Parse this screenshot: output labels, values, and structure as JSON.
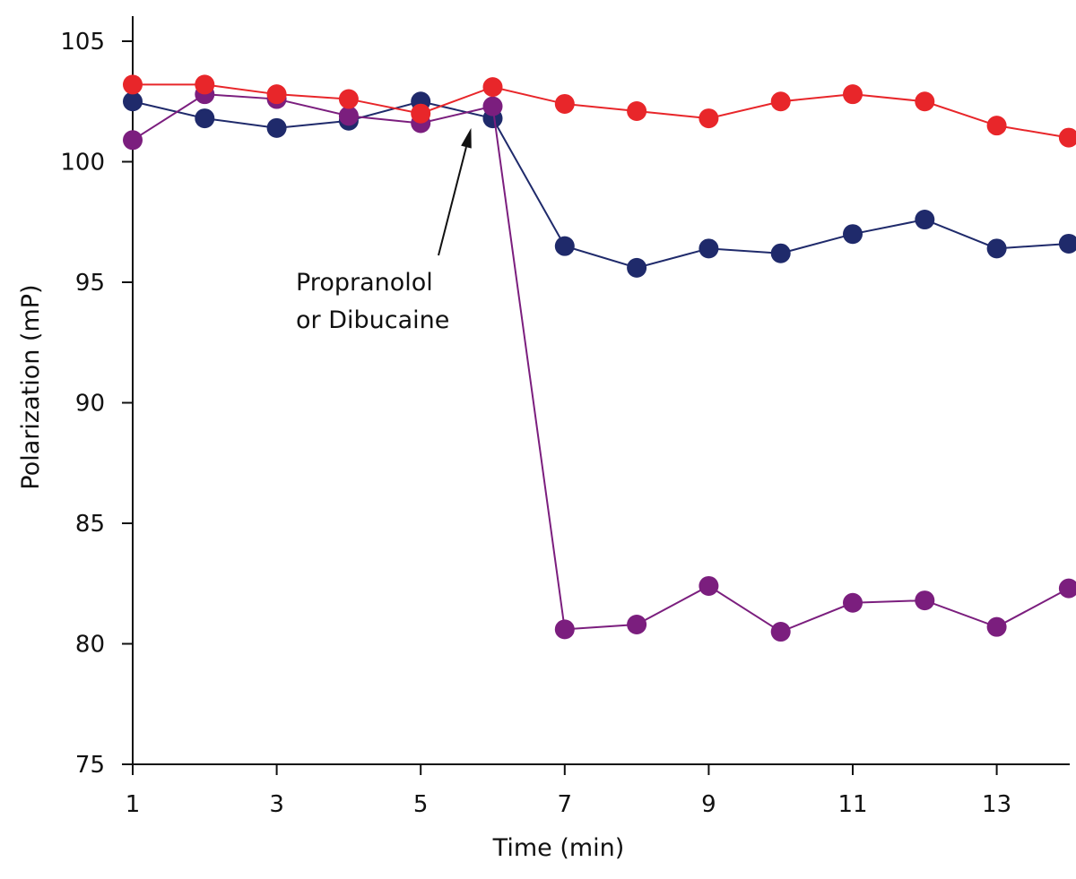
{
  "chart_data": {
    "type": "line",
    "title": "",
    "xlabel": "Time (min)",
    "ylabel": "Polarization (mP)",
    "xlim": [
      1,
      14
    ],
    "ylim": [
      75,
      105
    ],
    "x_ticks": [
      "1",
      "3",
      "5",
      "7",
      "9",
      "11",
      "13"
    ],
    "y_ticks": [
      "75",
      "80",
      "85",
      "90",
      "95",
      "100",
      "105"
    ],
    "grid": false,
    "legend": "none",
    "annotation": {
      "lines": [
        "Propranolol",
        "or Dibucaine"
      ],
      "points_to_x": 5.7,
      "points_to_y": 101.4
    },
    "x": [
      1,
      2,
      3,
      4,
      5,
      6,
      7,
      8,
      9,
      10,
      11,
      12,
      13,
      14
    ],
    "series": [
      {
        "color": "#1f2a6b",
        "values": [
          102.5,
          101.8,
          101.4,
          101.7,
          102.5,
          101.8,
          96.5,
          95.6,
          96.4,
          96.2,
          97.0,
          97.6,
          96.4,
          96.6
        ]
      },
      {
        "color": "#7b1e7e",
        "values": [
          100.9,
          102.8,
          102.6,
          101.9,
          101.6,
          102.3,
          80.6,
          80.8,
          82.4,
          80.5,
          81.7,
          81.8,
          80.7,
          82.3
        ]
      },
      {
        "color": "#e8262a",
        "values": [
          103.2,
          103.2,
          102.8,
          102.6,
          102.0,
          103.1,
          102.4,
          102.1,
          101.8,
          102.5,
          102.8,
          102.5,
          101.5,
          101.0
        ]
      }
    ]
  }
}
